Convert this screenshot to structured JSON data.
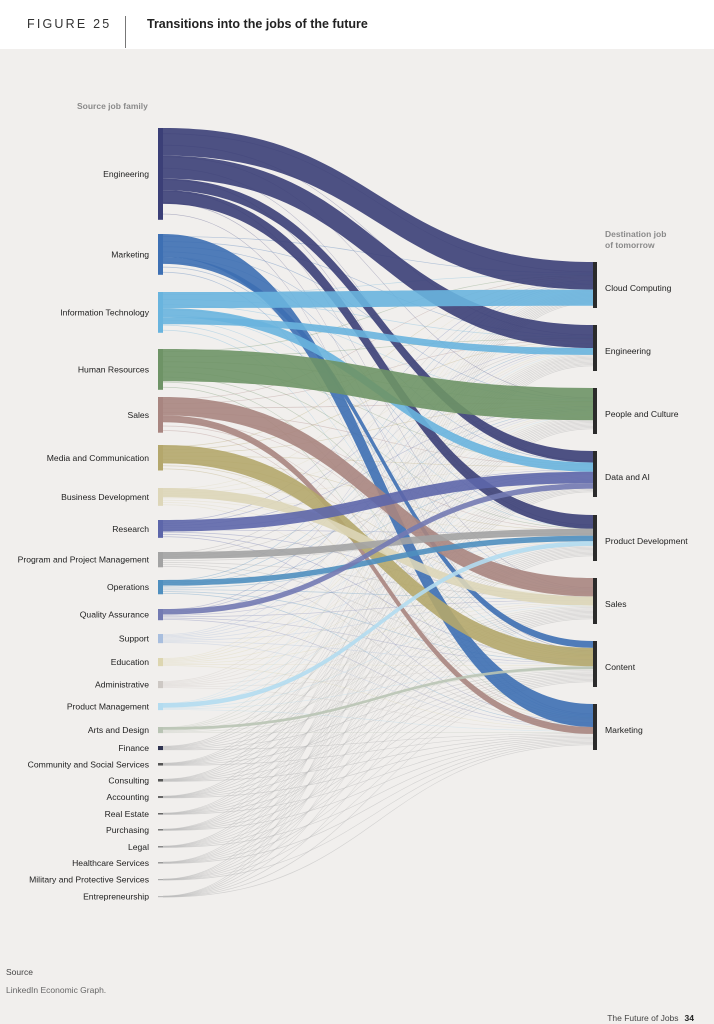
{
  "figure": {
    "label": "FIGURE 25",
    "title": "Transitions into the jobs of the future"
  },
  "source_heading": "Source job family",
  "destination_heading_line1": "Destination job",
  "destination_heading_line2": "of tomorrow",
  "source_note": {
    "label": "Source",
    "text": "LinkedIn Economic Graph."
  },
  "footer": {
    "publication": "The Future of Jobs",
    "page": "34"
  },
  "chart_data": {
    "type": "sankey",
    "title": "Transitions into the jobs of the future",
    "sources": [
      {
        "name": "Engineering",
        "value": 18,
        "color": "#3b3f77"
      },
      {
        "name": "Marketing",
        "value": 8,
        "color": "#3d6fb3"
      },
      {
        "name": "Information Technology",
        "value": 8,
        "color": "#69b4de"
      },
      {
        "name": "Human Resources",
        "value": 8,
        "color": "#6e9366"
      },
      {
        "name": "Sales",
        "value": 7,
        "color": "#a88580"
      },
      {
        "name": "Media and Communication",
        "value": 5,
        "color": "#b4a76c"
      },
      {
        "name": "Business Development",
        "value": 3.5,
        "color": "#ddd6b8"
      },
      {
        "name": "Research",
        "value": 3.5,
        "color": "#5d66aa"
      },
      {
        "name": "Program and Project Management",
        "value": 3,
        "color": "#a3a3a3"
      },
      {
        "name": "Operations",
        "value": 2.8,
        "color": "#4f8fbf"
      },
      {
        "name": "Quality Assurance",
        "value": 2.2,
        "color": "#737ab2"
      },
      {
        "name": "Support",
        "value": 1.8,
        "color": "#a8bede"
      },
      {
        "name": "Education",
        "value": 1.6,
        "color": "#ddd6b0"
      },
      {
        "name": "Administrative",
        "value": 1.4,
        "color": "#cdc8c4"
      },
      {
        "name": "Product Management",
        "value": 1.4,
        "color": "#b3dbef"
      },
      {
        "name": "Arts and Design",
        "value": 1.2,
        "color": "#b9c4b4"
      },
      {
        "name": "Finance",
        "value": 0.8,
        "color": "#2e3350"
      },
      {
        "name": "Community and Social Services",
        "value": 0.5,
        "color": "#555555"
      },
      {
        "name": "Consulting",
        "value": 0.5,
        "color": "#555555"
      },
      {
        "name": "Accounting",
        "value": 0.4,
        "color": "#666666"
      },
      {
        "name": "Real Estate",
        "value": 0.3,
        "color": "#666666"
      },
      {
        "name": "Purchasing",
        "value": 0.3,
        "color": "#777777"
      },
      {
        "name": "Legal",
        "value": 0.3,
        "color": "#888888"
      },
      {
        "name": "Healthcare Services",
        "value": 0.3,
        "color": "#999999"
      },
      {
        "name": "Military and Protective Services",
        "value": 0.2,
        "color": "#aaaaaa"
      },
      {
        "name": "Entrepreneurship",
        "value": 0.2,
        "color": "#bbbbbb"
      }
    ],
    "destinations": [
      {
        "name": "Cloud Computing",
        "value": 11
      },
      {
        "name": "Engineering",
        "value": 11
      },
      {
        "name": "People and Culture",
        "value": 11
      },
      {
        "name": "Data and AI",
        "value": 11
      },
      {
        "name": "Product Development",
        "value": 11
      },
      {
        "name": "Sales",
        "value": 11
      },
      {
        "name": "Content",
        "value": 11
      },
      {
        "name": "Marketing",
        "value": 11
      }
    ],
    "flows": [
      {
        "source": "Engineering",
        "target": "Cloud Computing",
        "value": 6
      },
      {
        "source": "Engineering",
        "target": "Engineering",
        "value": 5
      },
      {
        "source": "Engineering",
        "target": "Data and AI",
        "value": 2.5
      },
      {
        "source": "Engineering",
        "target": "Product Development",
        "value": 3
      },
      {
        "source": "Marketing",
        "target": "Marketing",
        "value": 5
      },
      {
        "source": "Marketing",
        "target": "Content",
        "value": 1.5
      },
      {
        "source": "Information Technology",
        "target": "Cloud Computing",
        "value": 3.5
      },
      {
        "source": "Information Technology",
        "target": "Data and AI",
        "value": 2
      },
      {
        "source": "Information Technology",
        "target": "Engineering",
        "value": 1.5
      },
      {
        "source": "Human Resources",
        "target": "People and Culture",
        "value": 7
      },
      {
        "source": "Sales",
        "target": "Sales",
        "value": 4
      },
      {
        "source": "Sales",
        "target": "Marketing",
        "value": 1.5
      },
      {
        "source": "Media and Communication",
        "target": "Content",
        "value": 4
      },
      {
        "source": "Business Development",
        "target": "Sales",
        "value": 2
      },
      {
        "source": "Research",
        "target": "Data and AI",
        "value": 2.5
      },
      {
        "source": "Program and Project Management",
        "target": "Product Development",
        "value": 1.5
      },
      {
        "source": "Operations",
        "target": "Product Development",
        "value": 1.2
      },
      {
        "source": "Quality Assurance",
        "target": "Data and AI",
        "value": 1.2
      },
      {
        "source": "Product Management",
        "target": "Product Development",
        "value": 1
      },
      {
        "source": "Arts and Design",
        "target": "Content",
        "value": 0.6
      }
    ]
  }
}
